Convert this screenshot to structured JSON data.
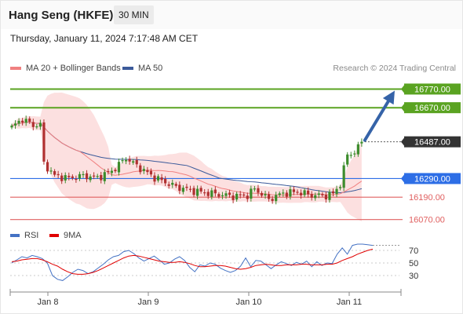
{
  "header": {
    "title": "Hang Seng (HKFE)",
    "timeframe": "30 MIN"
  },
  "datetime": "Thursday, January 11, 2024 7:17:48 AM CET",
  "legend": {
    "ma20_label": "MA 20 + Bollinger Bands",
    "ma50_label": "MA 50",
    "ma20_color": "#f08080",
    "ma50_color": "#3b5a9a"
  },
  "credit": "Research © 2024 Trading Central",
  "rsi_legend": {
    "rsi_label": "RSI",
    "ma_label": "9MA",
    "rsi_color": "#4472c4",
    "ma_color": "#e00000"
  },
  "chart_data": [
    {
      "type": "candlestick",
      "x_ticks": [
        "Jan 8",
        "Jan 9",
        "Jan 10",
        "Jan 11"
      ],
      "price_range": [
        16035,
        16835
      ],
      "last_price": "16487.00",
      "levels": [
        {
          "value": 16770,
          "label": "16770.00",
          "color": "#5aa321",
          "style": "resistance-box"
        },
        {
          "value": 16670,
          "label": "16670.00",
          "color": "#5aa321",
          "style": "resistance-box"
        },
        {
          "value": 16487,
          "label": "16487.00",
          "color": "#333333",
          "style": "last-box"
        },
        {
          "value": 16290,
          "label": "16290.00",
          "color": "#2d6ee6",
          "style": "pivot-box"
        },
        {
          "value": 16190,
          "label": "16190.00",
          "color": "#e06060",
          "style": "support-text"
        },
        {
          "value": 16070,
          "label": "16070.00",
          "color": "#e06060",
          "style": "support-text"
        }
      ],
      "target_arrow": {
        "from": 16487,
        "to": 16770,
        "color": "#3563a8"
      },
      "up_color": "#3c8c2c",
      "down_color": "#b03030"
    },
    {
      "type": "line",
      "ylabel": "",
      "y_ticks": [
        70,
        50,
        30
      ],
      "y_range": [
        5,
        85
      ],
      "series": [
        {
          "name": "RSI",
          "color": "#4472c4",
          "values": [
            50,
            55,
            60,
            58,
            62,
            60,
            57,
            50,
            30,
            24,
            22,
            28,
            35,
            40,
            38,
            33,
            36,
            42,
            48,
            55,
            60,
            62,
            68,
            70,
            65,
            58,
            53,
            57,
            61,
            55,
            48,
            50,
            56,
            60,
            54,
            43,
            36,
            47,
            45,
            50,
            48,
            42,
            38,
            35,
            38,
            45,
            58,
            44,
            54,
            53,
            47,
            41,
            47,
            52,
            49,
            46,
            51,
            48,
            53,
            44,
            52,
            46,
            50,
            49,
            64,
            74,
            64,
            78,
            80,
            80,
            79,
            78
          ]
        },
        {
          "name": "9MA",
          "color": "#e00000",
          "values": [
            52,
            53,
            55,
            56,
            57,
            57,
            55,
            52,
            48,
            45,
            40,
            36,
            33,
            32,
            32,
            33,
            35,
            38,
            42,
            46,
            50,
            54,
            58,
            61,
            62,
            61,
            59,
            57,
            55,
            53,
            52,
            51,
            51,
            52,
            51,
            49,
            46,
            44,
            44,
            45,
            46,
            46,
            45,
            43,
            41,
            40,
            41,
            43,
            46,
            47,
            48,
            47,
            46,
            46,
            47,
            47,
            47,
            48,
            48,
            47,
            47,
            47,
            48,
            48,
            50,
            54,
            57,
            60,
            64,
            67,
            70,
            72
          ]
        }
      ]
    }
  ]
}
